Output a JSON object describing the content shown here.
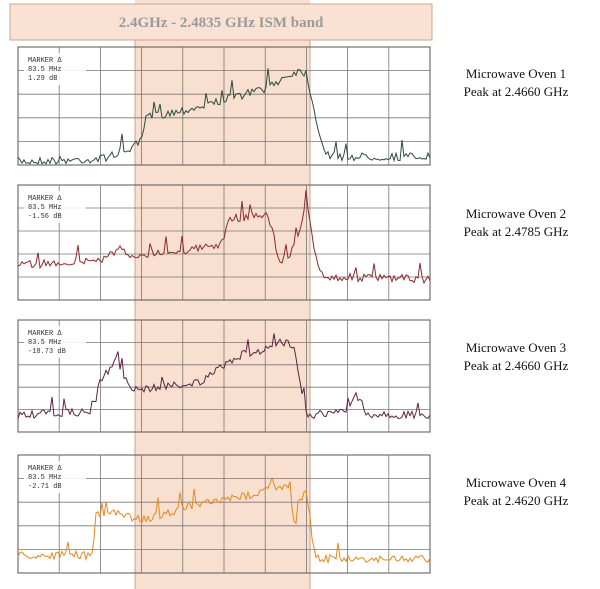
{
  "band_label": "2.4GHz - 2.4835 GHz ISM band",
  "panels": [
    {
      "marker": [
        "MARKER Δ",
        "83.5 MHz",
        "1.29 dB"
      ],
      "label": [
        "Microwave Oven 1",
        "Peak at 2.4660 GHz"
      ]
    },
    {
      "marker": [
        "MARKER Δ",
        "83.5 MHz",
        "-1.56 dB"
      ],
      "label": [
        "Microwave Oven 2",
        "Peak at 2.4785 GHz"
      ]
    },
    {
      "marker": [
        "MARKER Δ",
        "83.5 MHz",
        "-18.73 dB"
      ],
      "label": [
        "Microwave Oven 3",
        "Peak at 2.4660 GHz"
      ]
    },
    {
      "marker": [
        "MARKER Δ",
        "83.5 MHz",
        "-2.71 dB"
      ],
      "label": [
        "Microwave Oven 4",
        "Peak at 2.4620 GHz"
      ]
    }
  ]
}
